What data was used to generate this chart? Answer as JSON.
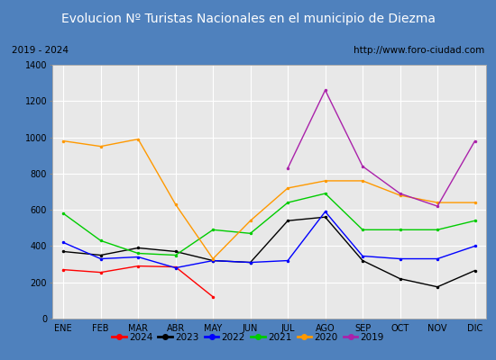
{
  "title": "Evolucion Nº Turistas Nacionales en el municipio de Diezma",
  "subtitle_left": "2019 - 2024",
  "subtitle_right": "http://www.foro-ciudad.com",
  "months": [
    "ENE",
    "FEB",
    "MAR",
    "ABR",
    "MAY",
    "JUN",
    "JUL",
    "AGO",
    "SEP",
    "OCT",
    "NOV",
    "DIC"
  ],
  "ylim": [
    0,
    1400
  ],
  "yticks": [
    0,
    200,
    400,
    600,
    800,
    1000,
    1200,
    1400
  ],
  "series": {
    "2024": {
      "color": "#ff0000",
      "values": [
        270,
        255,
        290,
        285,
        120,
        null,
        null,
        null,
        null,
        null,
        null,
        null
      ]
    },
    "2023": {
      "color": "#000000",
      "values": [
        370,
        350,
        390,
        370,
        320,
        310,
        540,
        560,
        320,
        220,
        175,
        265
      ]
    },
    "2022": {
      "color": "#0000ff",
      "values": [
        420,
        330,
        340,
        280,
        320,
        310,
        320,
        590,
        345,
        330,
        330,
        400
      ]
    },
    "2021": {
      "color": "#00cc00",
      "values": [
        580,
        430,
        360,
        350,
        490,
        470,
        640,
        690,
        490,
        490,
        490,
        540
      ]
    },
    "2020": {
      "color": "#ff9900",
      "values": [
        980,
        950,
        990,
        630,
        330,
        540,
        720,
        760,
        760,
        680,
        640,
        640
      ]
    },
    "2019": {
      "color": "#aa22aa",
      "values": [
        null,
        null,
        null,
        null,
        null,
        null,
        830,
        1260,
        840,
        690,
        620,
        980
      ]
    }
  },
  "title_bg_color": "#4f81bd",
  "title_text_color": "#ffffff",
  "title_fontsize": 10,
  "subtitle_fontsize": 7.5,
  "plot_bg_color": "#e8e8e8",
  "grid_color": "#ffffff",
  "border_color": "#aaaaaa",
  "legend_order": [
    "2024",
    "2023",
    "2022",
    "2021",
    "2020",
    "2019"
  ],
  "fig_bg_color": "#4f81bd",
  "white_bg_color": "#ffffff"
}
